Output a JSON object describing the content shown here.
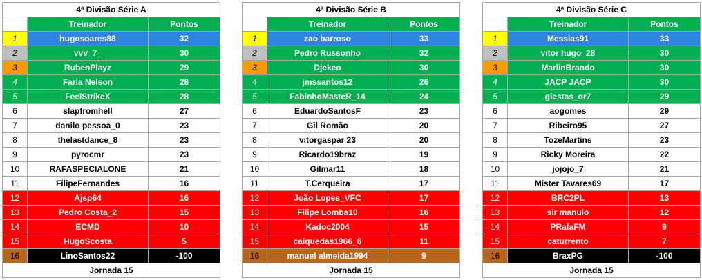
{
  "footer_label": "Jornada 15",
  "headers": {
    "name": "Treinador",
    "points": "Pontos"
  },
  "leagues": [
    {
      "title": "4ª Divisão Série A",
      "rows": [
        {
          "pos": "1",
          "name": "hugosoares88",
          "pts": "32",
          "cls": "c1"
        },
        {
          "pos": "2",
          "name": "vvv_7_",
          "pts": "30",
          "cls": "c2"
        },
        {
          "pos": "3",
          "name": "RubenPlayz",
          "pts": "29",
          "cls": "c3"
        },
        {
          "pos": "4",
          "name": "Faria Nelson",
          "pts": "28",
          "cls": "promo"
        },
        {
          "pos": "5",
          "name": "FeelStrikeX",
          "pts": "28",
          "cls": "promo"
        },
        {
          "pos": "6",
          "name": "slapfromhell",
          "pts": "27",
          "cls": "neutral"
        },
        {
          "pos": "7",
          "name": "danilo pessoa_0",
          "pts": "23",
          "cls": "neutral"
        },
        {
          "pos": "8",
          "name": "thelastdance_8",
          "pts": "23",
          "cls": "neutral"
        },
        {
          "pos": "9",
          "name": "pyrocmr",
          "pts": "23",
          "cls": "neutral"
        },
        {
          "pos": "10",
          "name": "RAFASPECIALONE",
          "pts": "21",
          "cls": "neutral"
        },
        {
          "pos": "11",
          "name": "FilipeFernandes",
          "pts": "16",
          "cls": "neutral"
        },
        {
          "pos": "12",
          "name": "Ajsp64",
          "pts": "16",
          "cls": "releg"
        },
        {
          "pos": "13",
          "name": "Pedro Costa_2",
          "pts": "15",
          "cls": "releg"
        },
        {
          "pos": "14",
          "name": "ECMD",
          "pts": "10",
          "cls": "releg"
        },
        {
          "pos": "15",
          "name": "HugoScosta",
          "pts": "5",
          "cls": "releg"
        },
        {
          "pos": "16",
          "name": "LinoSantos22",
          "pts": "-100",
          "cls": "last"
        }
      ]
    },
    {
      "title": "4ª Divisão Série B",
      "rows": [
        {
          "pos": "1",
          "name": "zao barroso",
          "pts": "33",
          "cls": "c1"
        },
        {
          "pos": "2",
          "name": "Pedro Russonho",
          "pts": "32",
          "cls": "c2"
        },
        {
          "pos": "3",
          "name": "Djekeo",
          "pts": "30",
          "cls": "c3"
        },
        {
          "pos": "4",
          "name": "jmssantos12",
          "pts": "26",
          "cls": "promo"
        },
        {
          "pos": "5",
          "name": "FabinhoMasteR_14",
          "pts": "24",
          "cls": "promo"
        },
        {
          "pos": "6",
          "name": "EduardoSantosF",
          "pts": "23",
          "cls": "neutral"
        },
        {
          "pos": "7",
          "name": "Gil Romão",
          "pts": "20",
          "cls": "neutral"
        },
        {
          "pos": "8",
          "name": "vitorgaspar 23",
          "pts": "20",
          "cls": "neutral"
        },
        {
          "pos": "9",
          "name": "Ricardo19braz",
          "pts": "19",
          "cls": "neutral"
        },
        {
          "pos": "10",
          "name": "Gilmar11",
          "pts": "18",
          "cls": "neutral"
        },
        {
          "pos": "11",
          "name": "T.Cerqueira",
          "pts": "17",
          "cls": "neutral"
        },
        {
          "pos": "12",
          "name": "João Lopes_VFC",
          "pts": "17",
          "cls": "releg"
        },
        {
          "pos": "13",
          "name": "Filipe Lomba10",
          "pts": "16",
          "cls": "releg"
        },
        {
          "pos": "14",
          "name": "Kadoc2004",
          "pts": "15",
          "cls": "releg"
        },
        {
          "pos": "15",
          "name": "caiquedas1966_6",
          "pts": "11",
          "cls": "releg"
        },
        {
          "pos": "16",
          "name": "manuel almeida1994",
          "pts": "9",
          "cls": "last-brown"
        }
      ]
    },
    {
      "title": "4ª Divisão Série C",
      "rows": [
        {
          "pos": "1",
          "name": "Messias91",
          "pts": "33",
          "cls": "c1"
        },
        {
          "pos": "2",
          "name": "vitor hugo_28",
          "pts": "30",
          "cls": "c2"
        },
        {
          "pos": "3",
          "name": "MarlinBrando",
          "pts": "30",
          "cls": "c3"
        },
        {
          "pos": "4",
          "name": "JACP JACP",
          "pts": "30",
          "cls": "promo"
        },
        {
          "pos": "5",
          "name": "giestas_or7",
          "pts": "29",
          "cls": "promo"
        },
        {
          "pos": "6",
          "name": "aogomes",
          "pts": "29",
          "cls": "neutral"
        },
        {
          "pos": "7",
          "name": "Ribeiro95",
          "pts": "27",
          "cls": "neutral"
        },
        {
          "pos": "8",
          "name": "TozeMartins",
          "pts": "23",
          "cls": "neutral"
        },
        {
          "pos": "9",
          "name": "Ricky Moreira",
          "pts": "22",
          "cls": "neutral"
        },
        {
          "pos": "10",
          "name": "jojojo_7",
          "pts": "21",
          "cls": "neutral"
        },
        {
          "pos": "11",
          "name": "Mister Tavares69",
          "pts": "17",
          "cls": "neutral"
        },
        {
          "pos": "12",
          "name": "BRC2PL",
          "pts": "13",
          "cls": "releg"
        },
        {
          "pos": "13",
          "name": "sir manulo",
          "pts": "12",
          "cls": "releg"
        },
        {
          "pos": "14",
          "name": "PRafaFM",
          "pts": "9",
          "cls": "releg"
        },
        {
          "pos": "15",
          "name": "caturrento",
          "pts": "7",
          "cls": "releg"
        },
        {
          "pos": "16",
          "name": "BraxPG",
          "pts": "-100",
          "cls": "last"
        }
      ]
    }
  ]
}
